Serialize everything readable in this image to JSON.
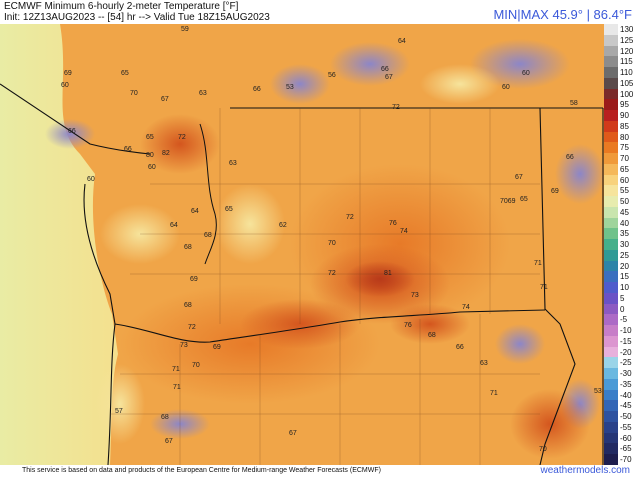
{
  "header": {
    "title": "ECMWF Minimum 6-hourly 2-meter Temperature [°F]",
    "subtitle": "Init: 12Z13AUG2023 -- [54] hr --> Valid Tue 18Z15AUG2023",
    "minmax": "MIN|MAX 45.9° | 86.4°F"
  },
  "colorbar": {
    "labels": [
      "130",
      "125",
      "120",
      "115",
      "110",
      "105",
      "100",
      "95",
      "90",
      "85",
      "80",
      "75",
      "70",
      "65",
      "60",
      "55",
      "50",
      "45",
      "40",
      "35",
      "30",
      "25",
      "20",
      "15",
      "10",
      "5",
      "0",
      "-5",
      "-10",
      "-15",
      "-20",
      "-25",
      "-30",
      "-35",
      "-40",
      "-45",
      "-50",
      "-55",
      "-60",
      "-65",
      "-70"
    ],
    "colors": [
      "#e8e8e8",
      "#c8c8c8",
      "#a8a8a8",
      "#8c8c8c",
      "#6c6c6c",
      "#5a4a4a",
      "#7a2a2a",
      "#9a1a1a",
      "#b81f1f",
      "#d13a1a",
      "#e05a1a",
      "#ea7a22",
      "#f09a3a",
      "#f5b85a",
      "#f8d27c",
      "#f6e49c",
      "#e7ecae",
      "#c9e5ae",
      "#9fd49c",
      "#6fc28a",
      "#45b08a",
      "#2f9a96",
      "#2c84a8",
      "#3a6fbf",
      "#4f5ccc",
      "#6a52c6",
      "#8c5ac2",
      "#ac6ac6",
      "#c77ec8",
      "#dc96d0",
      "#e8b0dc",
      "#9ad4e8",
      "#6ab8e0",
      "#4a9ad6",
      "#3a7ec8",
      "#3366b6",
      "#2e52a0",
      "#2a428a",
      "#263676",
      "#222a62",
      "#1e1e4e"
    ]
  },
  "values": [
    {
      "text": "59"
    },
    {
      "text": "64"
    },
    {
      "text": "69"
    },
    {
      "text": "60"
    },
    {
      "text": "65"
    },
    {
      "text": "70"
    },
    {
      "text": "67"
    },
    {
      "text": "63"
    },
    {
      "text": "66"
    },
    {
      "text": "53"
    },
    {
      "text": "56"
    },
    {
      "text": "66"
    },
    {
      "text": "67"
    },
    {
      "text": "60"
    },
    {
      "text": "60"
    },
    {
      "text": "58"
    },
    {
      "text": "72"
    },
    {
      "text": "66"
    },
    {
      "text": "65"
    },
    {
      "text": "72"
    },
    {
      "text": "66"
    },
    {
      "text": "60"
    },
    {
      "text": "82"
    },
    {
      "text": "80"
    },
    {
      "text": "63"
    },
    {
      "text": "60"
    },
    {
      "text": "66"
    },
    {
      "text": "67"
    },
    {
      "text": "69"
    },
    {
      "text": "7069"
    },
    {
      "text": "65"
    },
    {
      "text": "64"
    },
    {
      "text": "65"
    },
    {
      "text": "64"
    },
    {
      "text": "68"
    },
    {
      "text": "62"
    },
    {
      "text": "72"
    },
    {
      "text": "76"
    },
    {
      "text": "74"
    },
    {
      "text": "70"
    },
    {
      "text": "68"
    },
    {
      "text": "72"
    },
    {
      "text": "81"
    },
    {
      "text": "71"
    },
    {
      "text": "69"
    },
    {
      "text": "73"
    },
    {
      "text": "71"
    },
    {
      "text": "68"
    },
    {
      "text": "74"
    },
    {
      "text": "72"
    },
    {
      "text": "76"
    },
    {
      "text": "68"
    },
    {
      "text": "73"
    },
    {
      "text": "69"
    },
    {
      "text": "66"
    },
    {
      "text": "63"
    },
    {
      "text": "71"
    },
    {
      "text": "70"
    },
    {
      "text": "71"
    },
    {
      "text": "71"
    },
    {
      "text": "57"
    },
    {
      "text": "68"
    },
    {
      "text": "67"
    },
    {
      "text": "67"
    },
    {
      "text": "53"
    },
    {
      "text": "70"
    }
  ],
  "footer": {
    "credit": "This service is based on data and products of the European Centre for Medium-range Weather Forecasts (ECMWF)",
    "site": "weathermodels.com"
  }
}
